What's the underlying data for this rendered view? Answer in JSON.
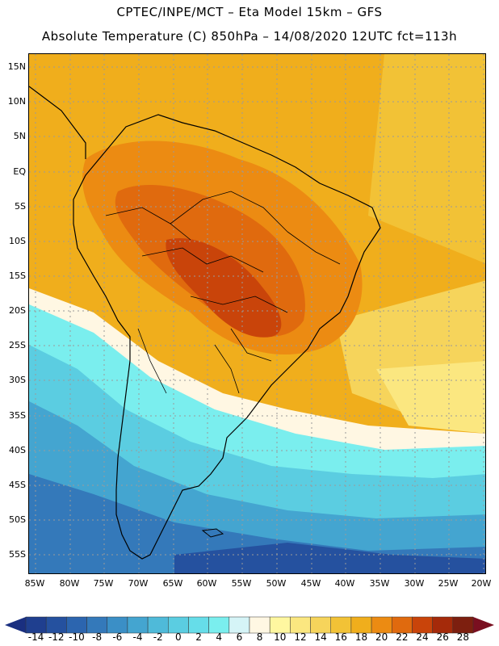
{
  "header": {
    "line1": "CPTEC/INPE/MCT –  Eta Model 15km – GFS",
    "line2": "Absolute Temperature (C) 850hPa – 14/08/2020 12UTC fct=113h"
  },
  "map": {
    "lat_labels": [
      "15N",
      "10N",
      "5N",
      "EQ",
      "5S",
      "10S",
      "15S",
      "20S",
      "25S",
      "30S",
      "35S",
      "40S",
      "45S",
      "50S",
      "55S"
    ],
    "lon_labels": [
      "85W",
      "80W",
      "75W",
      "70W",
      "65W",
      "60W",
      "55W",
      "50W",
      "45W",
      "40W",
      "35W",
      "30W",
      "25W",
      "20W"
    ]
  },
  "colorbar": {
    "labels": [
      "-14",
      "-12",
      "-10",
      "-8",
      "-6",
      "-4",
      "-2",
      "0",
      "2",
      "4",
      "6",
      "8",
      "10",
      "12",
      "14",
      "16",
      "18",
      "20",
      "22",
      "24",
      "26",
      "28"
    ],
    "colors": [
      "#1f3f8f",
      "#25519f",
      "#2c65af",
      "#3479ba",
      "#3b8fc6",
      "#44a5d0",
      "#4fbad9",
      "#5bcde1",
      "#66dde9",
      "#7aeeee",
      "#d5f4f7",
      "#fff7e3",
      "#fff7a0",
      "#fbe780",
      "#f6d45b",
      "#f2c236",
      "#f0ae1c",
      "#ec8b12",
      "#e06a0e",
      "#c9440a",
      "#a52a0a",
      "#7d1f0f"
    ],
    "left_arrow_color": "#1a2f80",
    "right_arrow_color": "#7a0f20"
  }
}
